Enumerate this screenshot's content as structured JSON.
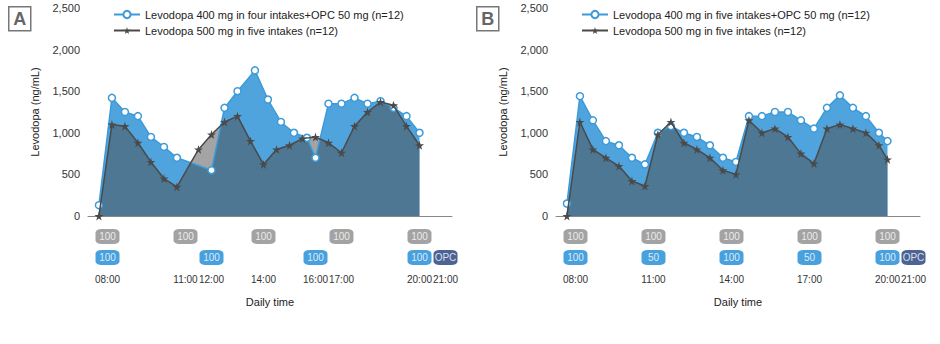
{
  "chart_data": [
    {
      "type": "line",
      "title": "A",
      "xlabel": "Daily time",
      "ylabel": "Levodopa (ng/mL)",
      "xlim": [
        7.25,
        21.25
      ],
      "xticks": [
        {
          "value": 8,
          "label": "08:00"
        },
        {
          "value": 11,
          "label": "11:00"
        },
        {
          "value": 12,
          "label": "12:00"
        },
        {
          "value": 14,
          "label": "14:00"
        },
        {
          "value": 16,
          "label": "16:00"
        },
        {
          "value": 17,
          "label": "17:00"
        },
        {
          "value": 20,
          "label": "20:00"
        },
        {
          "value": 21,
          "label": "21:00"
        }
      ],
      "ylim": [
        0,
        2500
      ],
      "yticks": [
        0,
        500,
        {
          "value": 1000,
          "label": "1,000"
        },
        {
          "value": 1500,
          "label": "1,500"
        },
        {
          "value": 2000,
          "label": "2,000"
        },
        {
          "value": 2500,
          "label": "2,500"
        }
      ],
      "grid": false,
      "legend": "upper left",
      "series": [
        {
          "name": "Levodopa 400 mg in four intakes+OPC 50 mg (n=12)",
          "color": "#3d9ad9",
          "marker": "circle",
          "x": [
            7.67,
            8.17,
            8.67,
            9.17,
            9.67,
            10.17,
            10.67,
            12.0,
            12.5,
            13.0,
            13.67,
            14.17,
            14.67,
            15.17,
            15.67,
            16.0,
            16.5,
            17.0,
            17.5,
            18.0,
            18.5,
            19.0,
            19.5,
            20.0
          ],
          "values": [
            130,
            1420,
            1250,
            1200,
            950,
            830,
            700,
            550,
            1300,
            1500,
            1750,
            1400,
            1130,
            1000,
            940,
            700,
            1350,
            1350,
            1420,
            1350,
            1380,
            1300,
            1200,
            1000
          ]
        },
        {
          "name": "Levodopa 500 mg in five intakes (n=12)",
          "color": "#4a4a4a",
          "marker": "star",
          "x": [
            7.67,
            8.17,
            8.67,
            9.17,
            9.67,
            10.17,
            10.67,
            11.5,
            12.0,
            12.5,
            13.0,
            13.5,
            14.0,
            14.5,
            15.0,
            15.5,
            16.0,
            16.5,
            17.0,
            17.5,
            18.0,
            18.5,
            19.0,
            19.5,
            20.0
          ],
          "values": [
            0,
            1100,
            1080,
            880,
            650,
            450,
            350,
            800,
            980,
            1130,
            1200,
            900,
            620,
            800,
            850,
            930,
            950,
            880,
            760,
            1080,
            1250,
            1370,
            1330,
            1080,
            850
          ]
        }
      ],
      "dosing": [
        {
          "x": [
            8,
            11,
            14,
            17,
            20
          ],
          "values": [
            100,
            100,
            100,
            100,
            100
          ],
          "color": "#8c8c8c"
        },
        {
          "x": [
            8,
            12,
            16,
            20,
            21
          ],
          "values": [
            100,
            100,
            100,
            100,
            "OPC"
          ],
          "colors": [
            "#1a8ad4",
            "#1a8ad4",
            "#1a8ad4",
            "#1a8ad4",
            "#1f3d7a"
          ]
        }
      ]
    },
    {
      "type": "line",
      "title": "B",
      "xlabel": "Daily time",
      "ylabel": "Levodopa (ng/mL)",
      "xlim": [
        7.25,
        21.25
      ],
      "xticks": [
        {
          "value": 8,
          "label": "08:00"
        },
        {
          "value": 11,
          "label": "11:00"
        },
        {
          "value": 14,
          "label": "14:00"
        },
        {
          "value": 17,
          "label": "17:00"
        },
        {
          "value": 20,
          "label": "20:00"
        },
        {
          "value": 21,
          "label": "21:00"
        }
      ],
      "ylim": [
        0,
        2500
      ],
      "yticks": [
        0,
        500,
        {
          "value": 1000,
          "label": "1,000"
        },
        {
          "value": 1500,
          "label": "1,500"
        },
        {
          "value": 2000,
          "label": "2,000"
        },
        {
          "value": 2500,
          "label": "2,500"
        }
      ],
      "grid": false,
      "legend": "upper left",
      "series": [
        {
          "name": "Levodopa 400 mg in five intakes+OPC 50 mg (n=12)",
          "color": "#3d9ad9",
          "marker": "circle",
          "x": [
            7.67,
            8.17,
            8.67,
            9.17,
            9.67,
            10.17,
            10.67,
            11.17,
            11.67,
            12.17,
            12.67,
            13.17,
            13.67,
            14.17,
            14.67,
            15.17,
            15.67,
            16.17,
            16.67,
            17.17,
            17.67,
            18.17,
            18.67,
            19.17,
            19.67,
            20.0
          ],
          "values": [
            150,
            1440,
            1150,
            900,
            850,
            700,
            620,
            1000,
            1080,
            1000,
            950,
            850,
            700,
            650,
            1200,
            1200,
            1250,
            1250,
            1150,
            1050,
            1300,
            1450,
            1300,
            1200,
            1000,
            900
          ]
        },
        {
          "name": "Levodopa 500 mg in five intakes (n=12)",
          "color": "#4a4a4a",
          "marker": "star",
          "x": [
            7.67,
            8.17,
            8.67,
            9.17,
            9.67,
            10.17,
            10.67,
            11.17,
            11.67,
            12.17,
            12.67,
            13.17,
            13.67,
            14.17,
            14.67,
            15.17,
            15.67,
            16.17,
            16.67,
            17.17,
            17.67,
            18.17,
            18.67,
            19.17,
            19.67,
            20.0
          ],
          "values": [
            0,
            1130,
            800,
            700,
            600,
            420,
            360,
            980,
            1130,
            880,
            800,
            700,
            550,
            500,
            1150,
            1000,
            1050,
            950,
            750,
            630,
            1050,
            1100,
            1050,
            1000,
            850,
            680
          ]
        }
      ],
      "dosing": [
        {
          "x": [
            8,
            11,
            14,
            17,
            20
          ],
          "values": [
            100,
            100,
            100,
            100,
            100
          ],
          "color": "#8c8c8c"
        },
        {
          "x": [
            8,
            11,
            14,
            17,
            20,
            21
          ],
          "values": [
            100,
            50,
            100,
            50,
            100,
            "OPC"
          ],
          "colors": [
            "#1a8ad4",
            "#1a8ad4",
            "#1a8ad4",
            "#1a8ad4",
            "#1a8ad4",
            "#1f3d7a"
          ]
        }
      ]
    }
  ]
}
